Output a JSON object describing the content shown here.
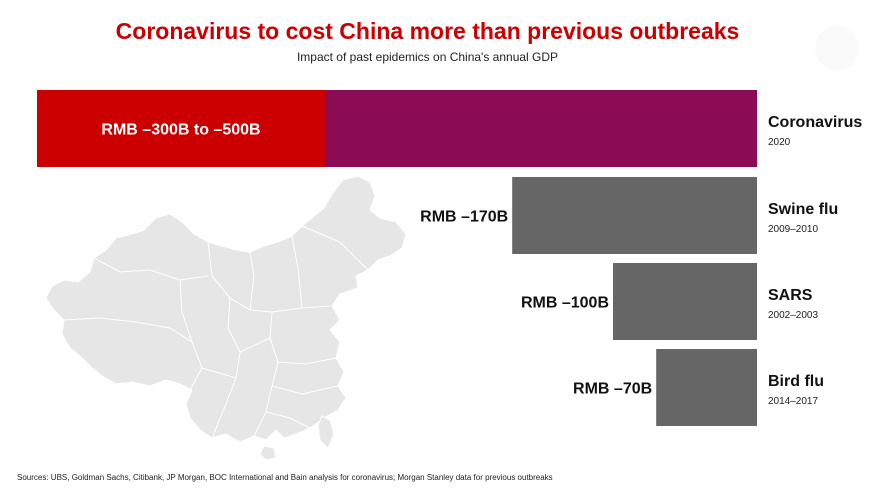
{
  "title": "Coronavirus to cost China more than previous outbreaks",
  "subtitle": "Impact of past epidemics on China's annual GDP",
  "source": "Sources: UBS, Goldman Sachs, Citibank, JP Morgan, BOC International and Bain analysis for coronavirus; Morgan Stanley data for previous outbreaks",
  "colors": {
    "title": "#cc0000",
    "coronavirus_low": "#cc0000",
    "coronavirus_high": "#8b0b55",
    "previous": "#666666",
    "map": "#e6e6e6"
  },
  "chart_data": {
    "type": "bar",
    "orientation": "horizontal",
    "title": "Coronavirus to cost China more than previous outbreaks",
    "subtitle": "Impact of past epidemics on China's annual GDP",
    "unit": "RMB billion",
    "categories": [
      "Coronavirus",
      "Swine flu",
      "SARS",
      "Bird flu"
    ],
    "years": [
      "2020",
      "2009–2010",
      "2002–2003",
      "2014–2017"
    ],
    "labels": [
      "RMB –300B to –500B",
      "RMB –170B",
      "RMB –100B",
      "RMB –70B"
    ],
    "values": [
      -500,
      -170,
      -100,
      -70
    ],
    "range_low": [
      -300,
      null,
      null,
      null
    ],
    "xlim": [
      -500,
      0
    ],
    "grid": false,
    "legend": "none"
  }
}
